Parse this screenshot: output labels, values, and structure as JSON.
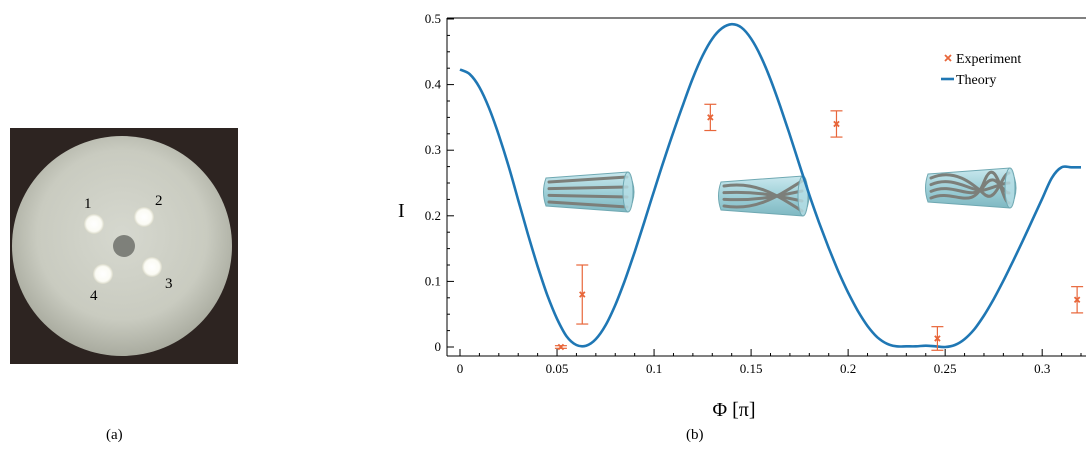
{
  "captions": {
    "a": "(a)",
    "b": "(b)"
  },
  "panel_a": {
    "spot_labels": [
      "1",
      "2",
      "3",
      "4"
    ]
  },
  "chart_data": {
    "type": "line",
    "title": "",
    "xlabel": "Φ [π]",
    "ylabel": "I",
    "xlim": [
      0,
      0.32
    ],
    "ylim": [
      0,
      0.5
    ],
    "xticks": [
      0,
      0.05,
      0.1,
      0.15,
      0.2,
      0.25,
      0.3
    ],
    "xtick_labels": [
      "0",
      "0.05",
      "0.1",
      "0.15",
      "0.2",
      "0.25",
      "0.3"
    ],
    "yticks": [
      0,
      0.1,
      0.2,
      0.3,
      0.4,
      0.5
    ],
    "ytick_labels": [
      "0",
      "0.1",
      "0.2",
      "0.3",
      "0.4",
      "0.5"
    ],
    "legend": {
      "placement": "top-right",
      "entries": [
        "Experiment",
        "Theory"
      ]
    },
    "colors": {
      "experiment": "#e8663a",
      "theory": "#1f77b4"
    },
    "series": [
      {
        "name": "Theory",
        "kind": "line",
        "x": [
          0,
          0.005,
          0.01,
          0.015,
          0.02,
          0.025,
          0.03,
          0.035,
          0.04,
          0.045,
          0.05,
          0.055,
          0.06,
          0.065,
          0.07,
          0.075,
          0.08,
          0.085,
          0.09,
          0.095,
          0.1,
          0.105,
          0.11,
          0.115,
          0.12,
          0.125,
          0.13,
          0.135,
          0.14,
          0.145,
          0.15,
          0.155,
          0.16,
          0.165,
          0.17,
          0.175,
          0.18,
          0.185,
          0.19,
          0.195,
          0.2,
          0.205,
          0.21,
          0.215,
          0.22,
          0.225,
          0.23,
          0.235,
          0.24,
          0.245,
          0.25,
          0.255,
          0.26,
          0.265,
          0.27,
          0.275,
          0.28,
          0.285,
          0.29,
          0.295,
          0.3,
          0.305,
          0.31,
          0.315,
          0.32
        ],
        "y": [
          0.423,
          0.416,
          0.396,
          0.364,
          0.323,
          0.276,
          0.224,
          0.172,
          0.123,
          0.079,
          0.043,
          0.016,
          0.003,
          0.002,
          0.012,
          0.033,
          0.064,
          0.102,
          0.145,
          0.191,
          0.238,
          0.284,
          0.328,
          0.37,
          0.41,
          0.444,
          0.47,
          0.486,
          0.492,
          0.487,
          0.47,
          0.443,
          0.408,
          0.367,
          0.323,
          0.277,
          0.232,
          0.19,
          0.151,
          0.115,
          0.083,
          0.055,
          0.032,
          0.015,
          0.005,
          0.001,
          0.001,
          0.001,
          0.002,
          0.001,
          0.0,
          0.003,
          0.012,
          0.027,
          0.048,
          0.073,
          0.101,
          0.131,
          0.162,
          0.194,
          0.226,
          0.258,
          0.274,
          0.274,
          0.274
        ]
      },
      {
        "name": "Experiment",
        "kind": "errorbar",
        "points": [
          {
            "x": 0.052,
            "y": 0.0,
            "err": 0.002
          },
          {
            "x": 0.063,
            "y": 0.08,
            "err": 0.045
          },
          {
            "x": 0.129,
            "y": 0.35,
            "err": 0.02
          },
          {
            "x": 0.194,
            "y": 0.34,
            "err": 0.02
          },
          {
            "x": 0.246,
            "y": 0.013,
            "err": 0.018
          },
          {
            "x": 0.318,
            "y": 0.072,
            "err": 0.02
          }
        ]
      }
    ]
  }
}
